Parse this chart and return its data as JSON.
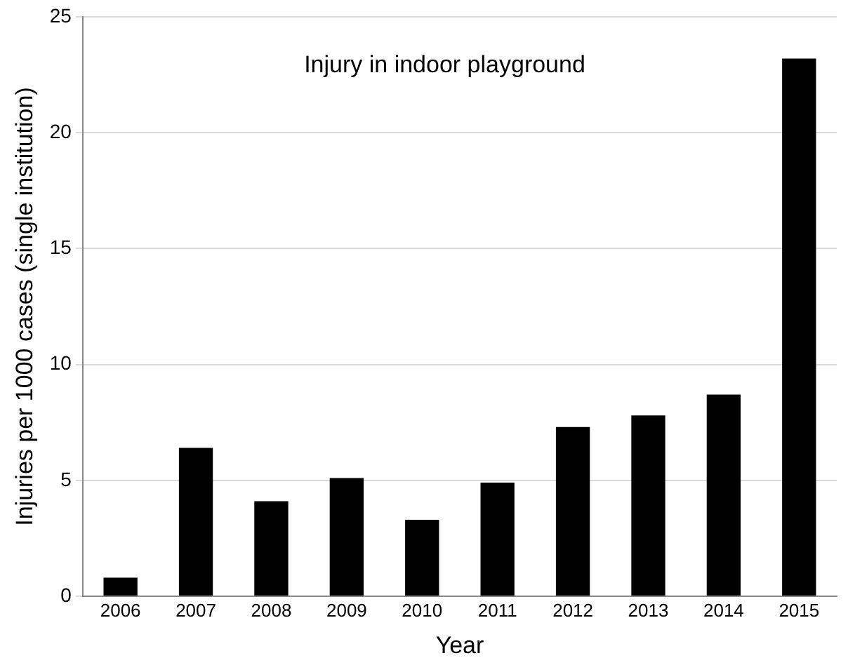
{
  "chart_data": {
    "type": "bar",
    "annotations": [
      "Injury in indoor playground"
    ],
    "xlabel": "Year",
    "ylabel": "Injuries per 1000 cases (single institution)",
    "categories": [
      "2006",
      "2007",
      "2008",
      "2009",
      "2010",
      "2011",
      "2012",
      "2013",
      "2014",
      "2015"
    ],
    "values": [
      0.8,
      6.4,
      4.1,
      5.1,
      3.3,
      4.9,
      7.3,
      7.8,
      8.7,
      23.2
    ],
    "color": "#000000",
    "ylim": [
      0,
      25
    ],
    "yticks": [
      0,
      5,
      10,
      15,
      20,
      25
    ],
    "grid": "y",
    "legend": false
  }
}
